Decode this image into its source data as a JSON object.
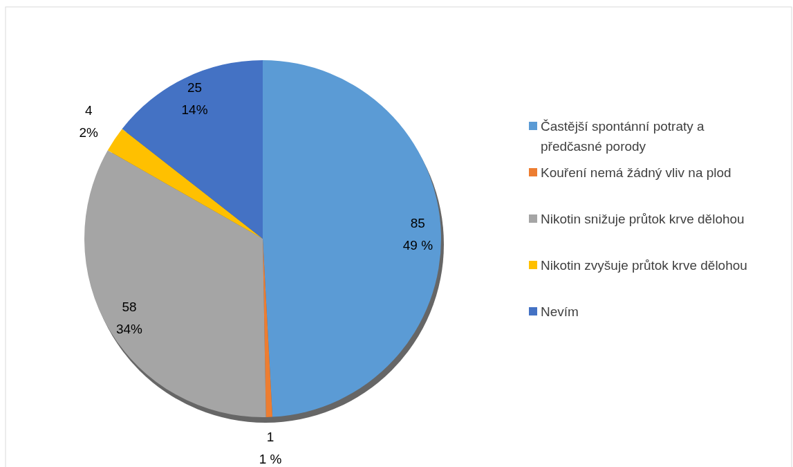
{
  "chart_data": {
    "type": "pie",
    "categories": [
      "Častější spontánní potraty a předčasné porody",
      "Kouření nemá žádný vliv na plod",
      "Nikotin snižuje průtok krve dělohou",
      "Nikotin zvyšuje průtok krve dělohou",
      "Nevím"
    ],
    "values": [
      85,
      1,
      58,
      4,
      25
    ],
    "colors": [
      "#5b9bd5",
      "#ed7d31",
      "#a5a5a5",
      "#ffc000",
      "#4472c4"
    ],
    "value_labels": [
      "85\n49 %",
      "1\n1 %",
      "58\n34%",
      "4\n2%",
      "25\n14%"
    ],
    "legend": "right"
  }
}
